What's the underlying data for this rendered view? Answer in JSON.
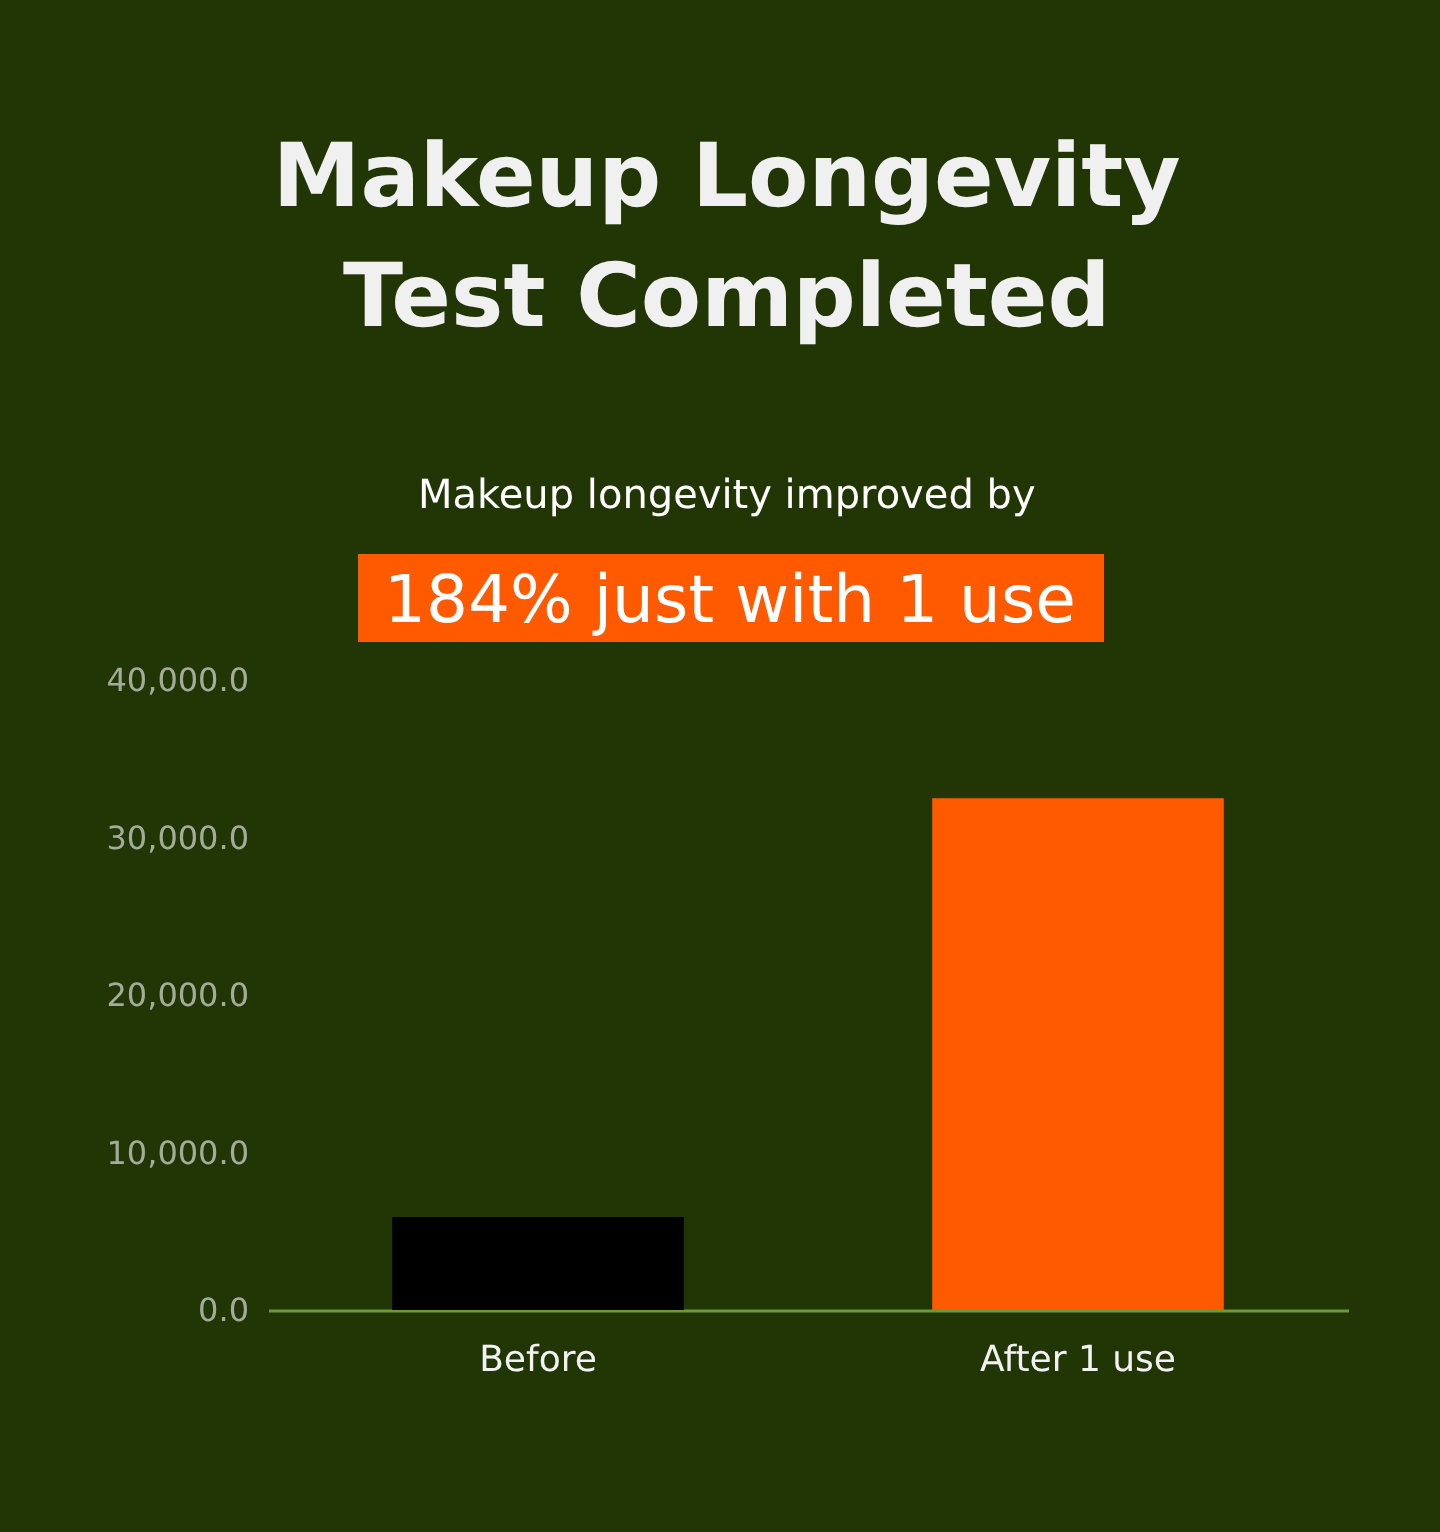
{
  "chart_data": {
    "type": "bar",
    "title": "Makeup Longevity Test Completed",
    "subtitle": "Makeup longevity improved by",
    "annotations": [
      "184% just with 1 use"
    ],
    "categories": [
      "Before",
      "After 1 use"
    ],
    "values": [
      5900,
      32500
    ],
    "colors": [
      "#000000",
      "#ff5a00"
    ],
    "ylim": [
      0,
      40000
    ],
    "yticks": [
      {
        "value": 0,
        "label": "0.0"
      },
      {
        "value": 10000,
        "label": "10,000.0"
      },
      {
        "value": 20000,
        "label": "20,000.0"
      },
      {
        "value": 30000,
        "label": "30,000.0"
      },
      {
        "value": 40000,
        "label": "40,000.0"
      }
    ]
  }
}
